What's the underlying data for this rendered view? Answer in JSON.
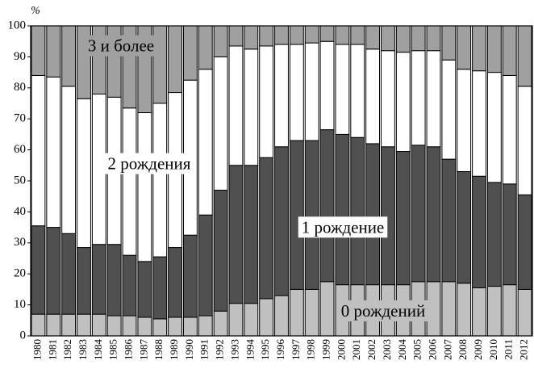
{
  "chart_data": {
    "type": "stacked_bar",
    "y_label": "%",
    "categories": [
      "1980",
      "1981",
      "1982",
      "1983",
      "1984",
      "1985",
      "1986",
      "1987",
      "1988",
      "1989",
      "1990",
      "1991",
      "1992",
      "1993",
      "1994",
      "1995",
      "1996",
      "1997",
      "1998",
      "1999",
      "2000",
      "2001",
      "2002",
      "2003",
      "2004",
      "2005",
      "2006",
      "2007",
      "2008",
      "2009",
      "2010",
      "2011",
      "2012"
    ],
    "series": [
      {
        "name": "0 рождений",
        "color": "#c0c0c0",
        "values": [
          7,
          7,
          7,
          7,
          7,
          6.5,
          6.5,
          6,
          5.5,
          6,
          6,
          6.5,
          8,
          10.5,
          10.5,
          12,
          13,
          15,
          15,
          17.5,
          16.5,
          16.5,
          16.5,
          16.5,
          16.5,
          17.5,
          17.5,
          17.5,
          17,
          15.5,
          16,
          16.5,
          15
        ]
      },
      {
        "name": "1 рождение",
        "color": "#505050",
        "values": [
          28.5,
          28,
          26,
          21.5,
          22.5,
          23,
          19.5,
          18,
          20,
          22.5,
          26.5,
          32.5,
          39,
          44.5,
          44.5,
          45.5,
          48,
          48,
          48,
          49,
          48.5,
          47.5,
          45.5,
          44.5,
          43,
          44,
          43.5,
          39.5,
          36,
          36,
          33.5,
          32.5,
          30.5
        ]
      },
      {
        "name": "2 рождения",
        "color": "#ffffff",
        "values": [
          48.5,
          48.5,
          47.5,
          48,
          48.5,
          47.5,
          47.5,
          48,
          49.5,
          50,
          50,
          47,
          43,
          38.5,
          37.5,
          36,
          33,
          31,
          31.5,
          28.5,
          29,
          30,
          30.5,
          31,
          32,
          30.5,
          31,
          32,
          33,
          34,
          35.5,
          35,
          35
        ]
      },
      {
        "name": "3 и более",
        "color": "#a0a0a0",
        "values": [
          16,
          16.5,
          19.5,
          23.5,
          22,
          23,
          26.5,
          28,
          25,
          21.5,
          17.5,
          14,
          10,
          6.5,
          7.5,
          6.5,
          6,
          6,
          5.5,
          5,
          6,
          6,
          7.5,
          8,
          8.5,
          8,
          8,
          11,
          14,
          14.5,
          15,
          16,
          19.5
        ]
      }
    ],
    "ylim": [
      0,
      100
    ],
    "yticks": [
      0,
      10,
      20,
      30,
      40,
      50,
      60,
      70,
      80,
      90,
      100
    ]
  }
}
